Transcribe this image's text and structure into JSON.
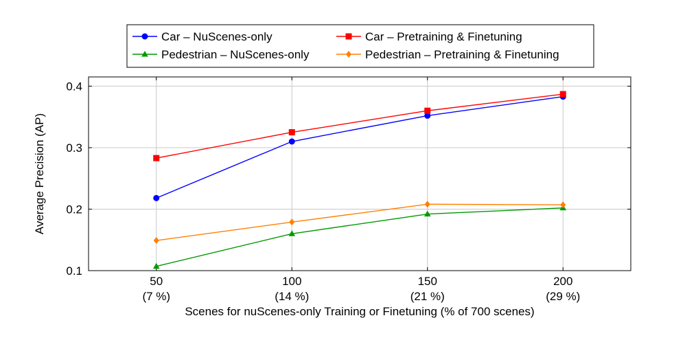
{
  "chart_data": {
    "type": "line",
    "x": [
      50,
      100,
      150,
      200
    ],
    "x_tick_labels": [
      "50",
      "100",
      "150",
      "200"
    ],
    "x_tick_sublabels": [
      "(7 %)",
      "(14 %)",
      "(21 %)",
      "(29 %)"
    ],
    "xlabel": "Scenes for nuScenes-only Training or Finetuning (% of 700 scenes)",
    "ylabel": "Average Precision (AP)",
    "y_ticks": [
      0.1,
      0.2,
      0.3,
      0.4
    ],
    "y_tick_labels": [
      "0.1",
      "0.2",
      "0.3",
      "0.4"
    ],
    "xlim": [
      25,
      225
    ],
    "ylim": [
      0.1,
      0.415
    ],
    "grid": true,
    "legend_position": "top",
    "series": [
      {
        "name": "Car – NuScenes-only",
        "values": [
          0.218,
          0.31,
          0.352,
          0.383
        ],
        "color": "#0000ff",
        "marker": "circle"
      },
      {
        "name": "Car – Pretraining & Finetuning",
        "values": [
          0.283,
          0.325,
          0.36,
          0.387
        ],
        "color": "#ff0000",
        "marker": "square"
      },
      {
        "name": "Pedestrian – NuScenes-only",
        "values": [
          0.107,
          0.16,
          0.192,
          0.202
        ],
        "color": "#009900",
        "marker": "triangle"
      },
      {
        "name": "Pedestrian – Pretraining & Finetuning",
        "values": [
          0.149,
          0.179,
          0.208,
          0.207
        ],
        "color": "#ff8000",
        "marker": "diamond"
      }
    ]
  }
}
